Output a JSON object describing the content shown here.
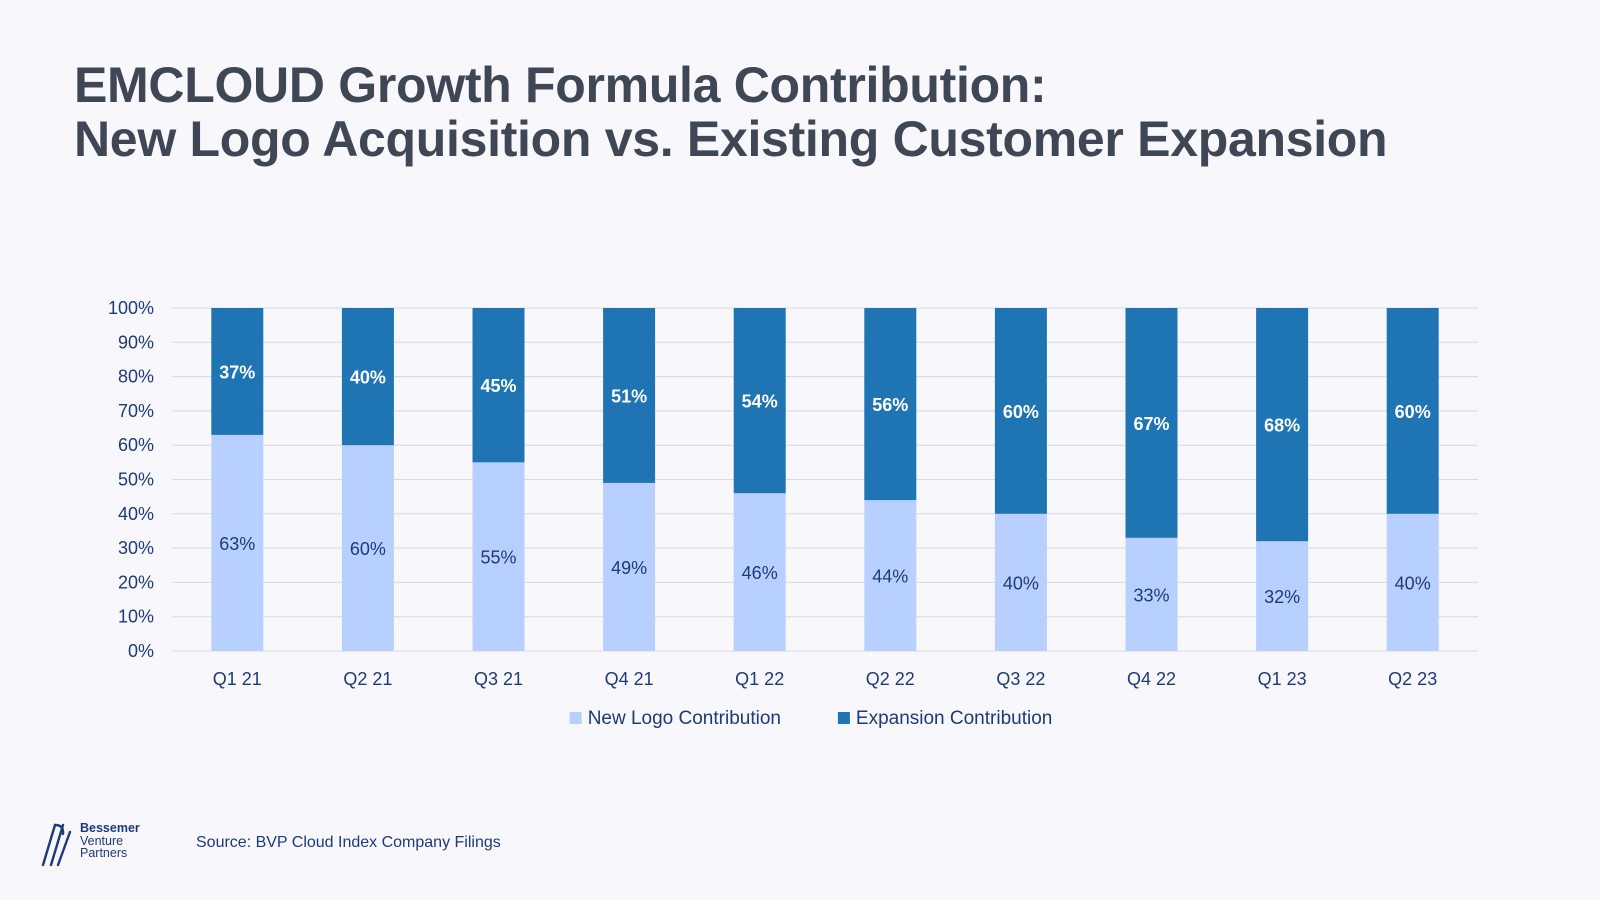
{
  "title": {
    "line1": "EMCLOUD Growth Formula Contribution:",
    "line2": "New Logo Acquisition vs. Existing Customer Expansion"
  },
  "colors": {
    "new_logo": "#b8d0ff",
    "expansion": "#1f74b4",
    "axis_text": "#1d3a7a",
    "grid": "#d9d9df",
    "title": "#3f4655"
  },
  "source": "Source: BVP Cloud Index Company Filings",
  "logo": {
    "line1": "Bessemer",
    "line2": "Venture",
    "line3": "Partners"
  },
  "chart_data": {
    "type": "bar",
    "stacked": true,
    "categories": [
      "Q1 21",
      "Q2 21",
      "Q3 21",
      "Q4 21",
      "Q1 22",
      "Q2 22",
      "Q3 22",
      "Q4 22",
      "Q1 23",
      "Q2 23"
    ],
    "series": [
      {
        "name": "New Logo Contribution",
        "values": [
          63,
          60,
          55,
          49,
          46,
          44,
          40,
          33,
          32,
          40
        ],
        "color": "#b8d0ff",
        "label_color": "#1d3a7a"
      },
      {
        "name": "Expansion Contribution",
        "values": [
          37,
          40,
          45,
          51,
          54,
          56,
          60,
          67,
          68,
          60
        ],
        "color": "#1f74b4",
        "label_color": "#ffffff"
      }
    ],
    "y_ticks": [
      "0%",
      "10%",
      "20%",
      "30%",
      "40%",
      "50%",
      "60%",
      "70%",
      "80%",
      "90%",
      "100%"
    ],
    "ylim": [
      0,
      100
    ],
    "grid": true,
    "legend": "bottom-center"
  }
}
